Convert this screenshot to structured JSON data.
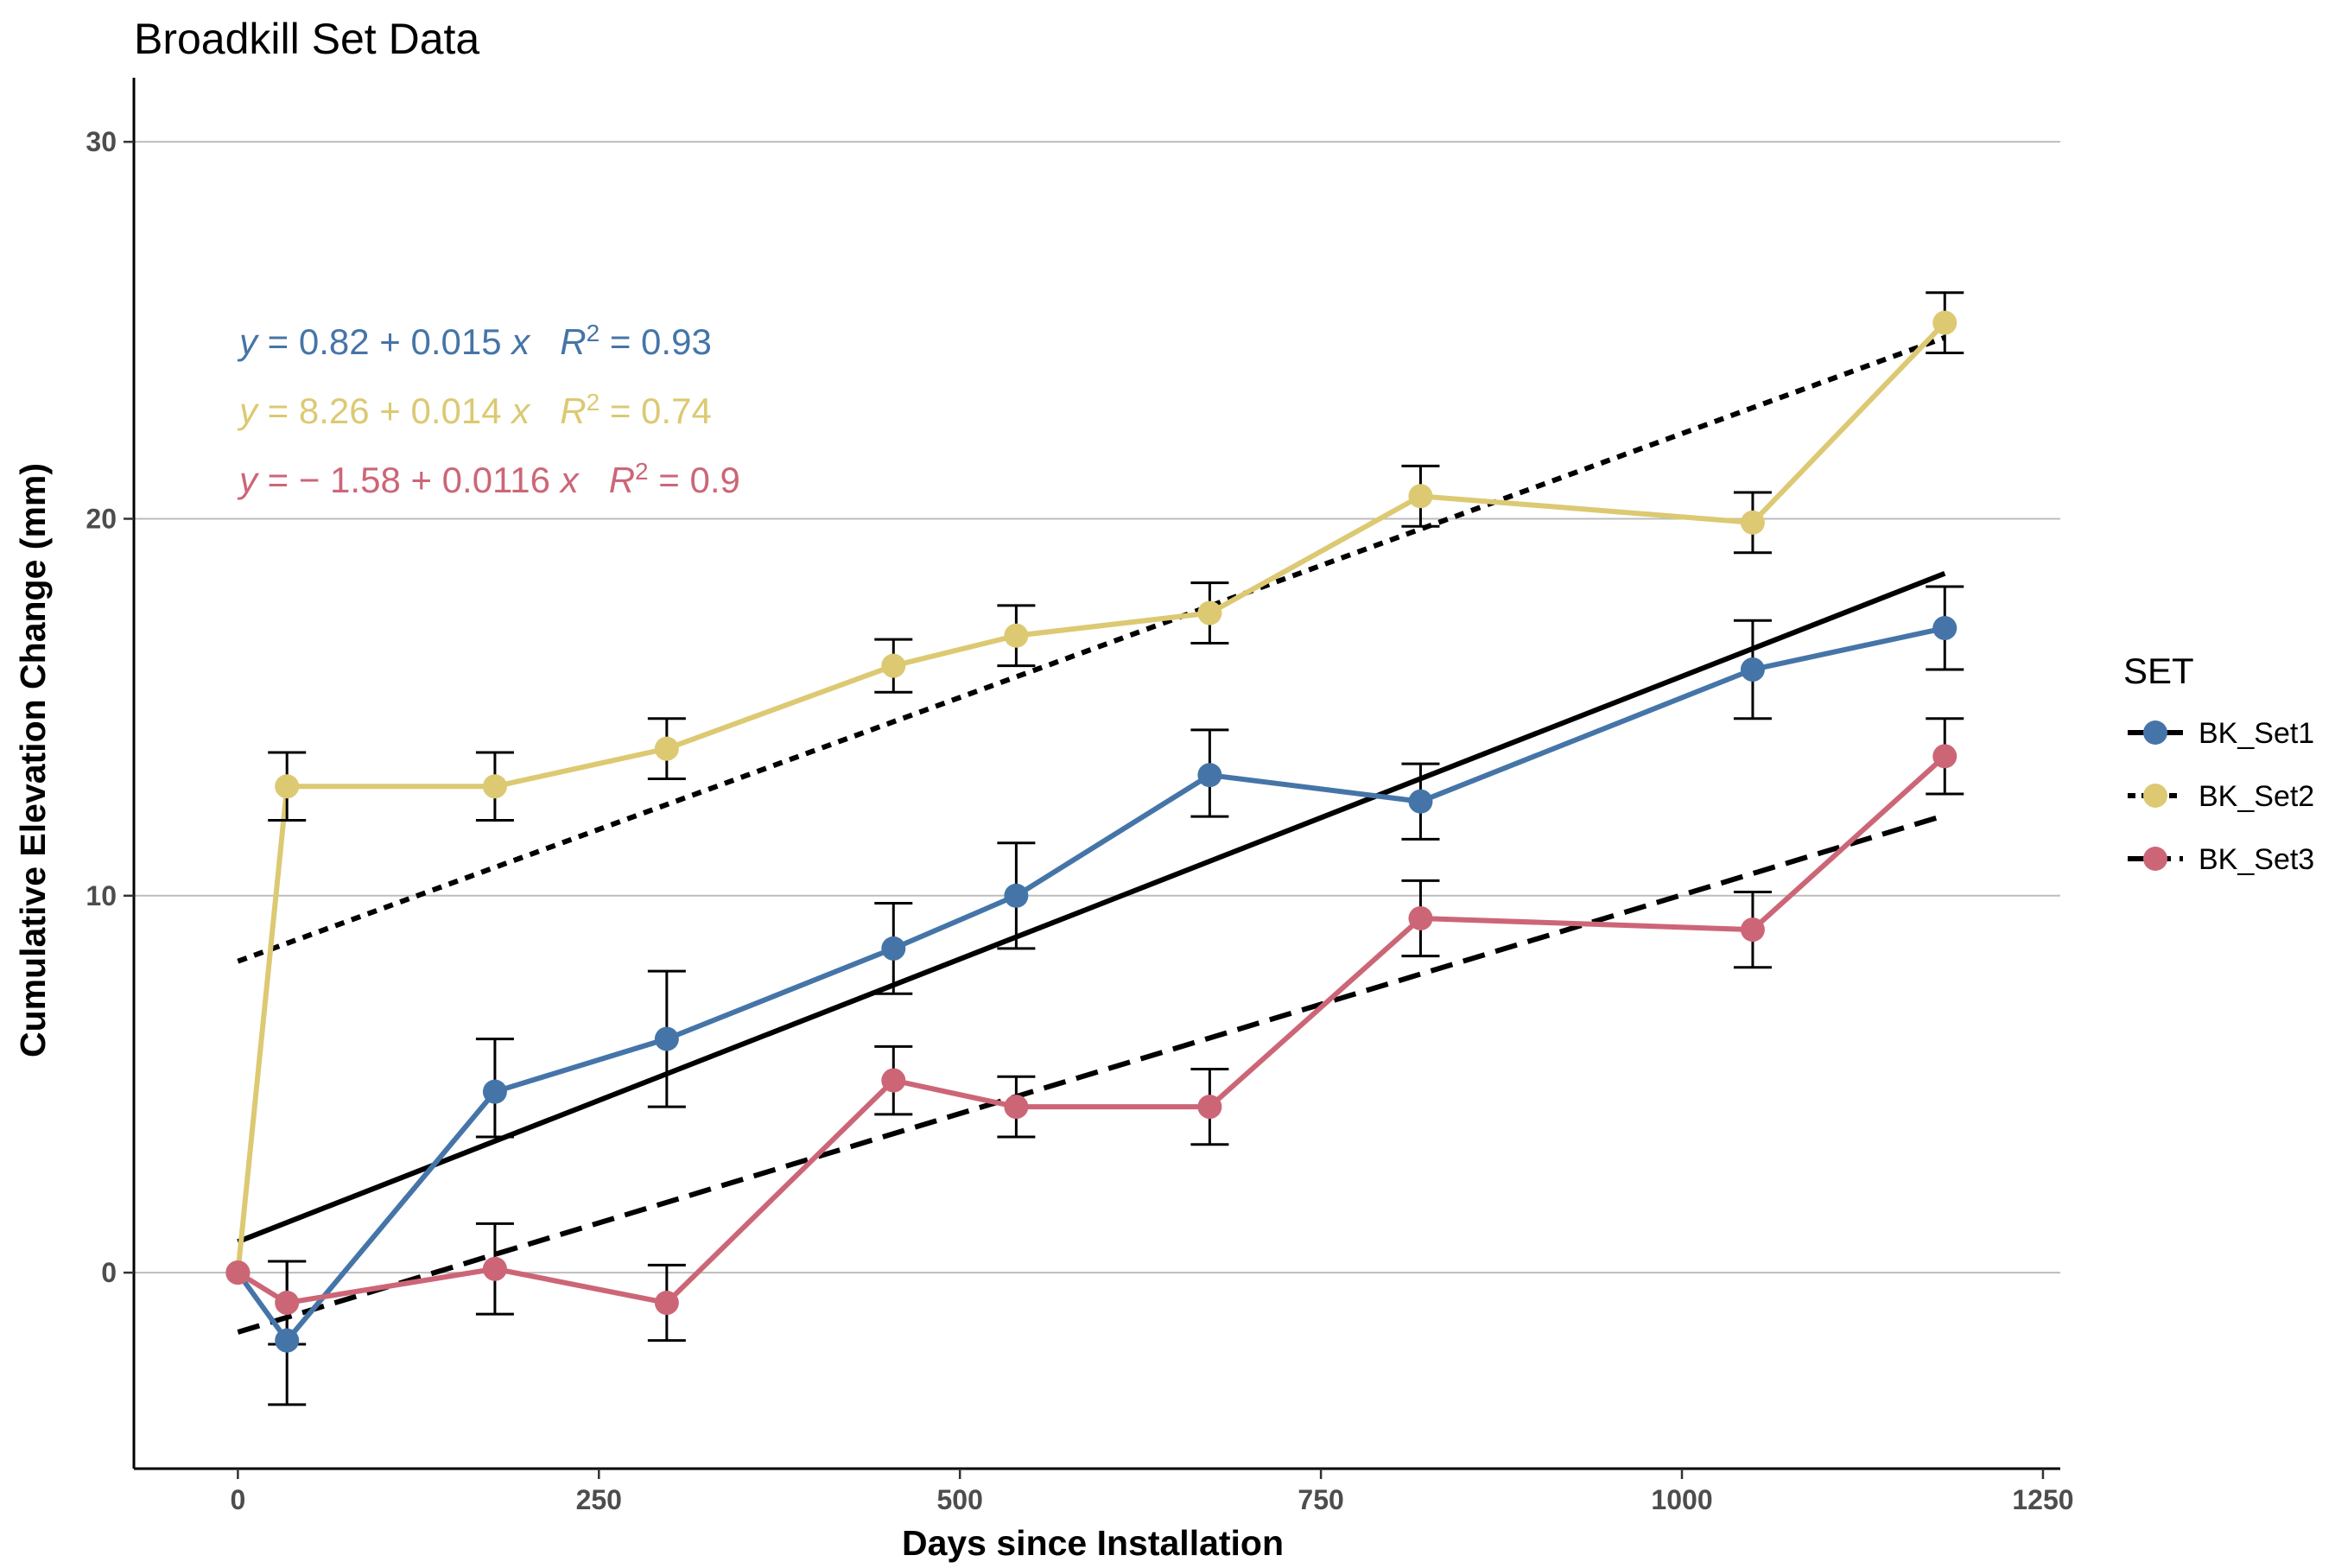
{
  "chart_data": {
    "type": "line",
    "title": "Broadkill Set Data",
    "xlabel": "Days since Installation",
    "ylabel": "Cumulative Elevation Change (mm)",
    "xlim": [
      -72,
      1262
    ],
    "ylim": [
      -5.2,
      31.7
    ],
    "x_ticks": [
      0,
      250,
      500,
      750,
      1000,
      1250
    ],
    "x_tick_labels": [
      "0",
      "250",
      "500",
      "750",
      "1000",
      "1250"
    ],
    "y_ticks": [
      0,
      10,
      20,
      30
    ],
    "y_tick_labels": [
      "0",
      "10",
      "20",
      "30"
    ],
    "grid": "horizontal major",
    "legend": {
      "title": "SET",
      "position": "right"
    },
    "series": [
      {
        "name": "BK_Set1",
        "color": "#4575a8",
        "trend_dash": "solid",
        "x": [
          0,
          34,
          178,
          297,
          454,
          539,
          673,
          819,
          1049,
          1182
        ],
        "y": [
          0,
          -1.8,
          4.8,
          6.2,
          8.6,
          10.0,
          13.2,
          12.5,
          16.0,
          17.1
        ],
        "err_low": [
          0,
          1.7,
          1.2,
          1.8,
          1.2,
          1.4,
          1.1,
          1.0,
          1.3,
          1.1
        ],
        "err_high": [
          0,
          2.1,
          1.4,
          1.8,
          1.2,
          1.4,
          1.2,
          1.0,
          1.3,
          1.1
        ],
        "trend": {
          "intercept": 0.82,
          "slope": 0.015,
          "x_range": [
            0,
            1182
          ]
        },
        "equation": {
          "prefix": "y",
          "body": " = 0.82 + 0.015 ",
          "xvar": "x",
          "r": "R",
          "r_exp": "2",
          "r_value": " = 0.93"
        }
      },
      {
        "name": "BK_Set2",
        "color": "#dcc972",
        "trend_dash": "dotted",
        "x": [
          0,
          34,
          178,
          297,
          454,
          539,
          673,
          819,
          1049,
          1182
        ],
        "y": [
          0,
          12.9,
          12.9,
          13.9,
          16.1,
          16.9,
          17.5,
          20.6,
          19.9,
          25.2
        ],
        "err_low": [
          0,
          0.9,
          0.9,
          0.8,
          0.7,
          0.8,
          0.8,
          0.8,
          0.8,
          0.8
        ],
        "err_high": [
          0,
          0.9,
          0.9,
          0.8,
          0.7,
          0.8,
          0.8,
          0.8,
          0.8,
          0.8
        ],
        "trend": {
          "intercept": 8.26,
          "slope": 0.014,
          "x_range": [
            0,
            1182
          ]
        },
        "equation": {
          "prefix": "y",
          "body": " = 8.26 + 0.014 ",
          "xvar": "x",
          "r": "R",
          "r_exp": "2",
          "r_value": " = 0.74"
        }
      },
      {
        "name": "BK_Set3",
        "color": "#cc6677",
        "trend_dash": "dashed",
        "x": [
          0,
          34,
          178,
          297,
          454,
          539,
          673,
          819,
          1049,
          1182
        ],
        "y": [
          0,
          -0.8,
          0.1,
          -0.8,
          5.1,
          4.4,
          4.4,
          9.4,
          9.1,
          13.7
        ],
        "err_low": [
          0,
          1.1,
          1.2,
          1.0,
          0.9,
          0.8,
          1.0,
          1.0,
          1.0,
          1.0
        ],
        "err_high": [
          0,
          1.1,
          1.2,
          1.0,
          0.9,
          0.8,
          1.0,
          1.0,
          1.0,
          1.0
        ],
        "trend": {
          "intercept": -1.58,
          "slope": 0.0116,
          "x_range": [
            0,
            1182
          ]
        },
        "equation": {
          "prefix": "y",
          "body": " = − 1.58 + 0.0116 ",
          "xvar": "x",
          "r": "R",
          "r_exp": "2",
          "r_value": " = 0.9"
        }
      }
    ]
  }
}
